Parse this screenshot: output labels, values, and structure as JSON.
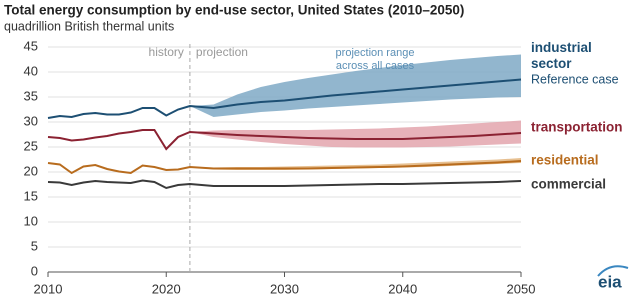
{
  "chart_data": {
    "type": "line",
    "title": "Total energy consumption by end-use sector, United States (2010–2050)",
    "subtitle": "quadrillion British thermal units",
    "x": [
      2010,
      2011,
      2012,
      2013,
      2014,
      2015,
      2016,
      2017,
      2018,
      2019,
      2020,
      2021,
      2022,
      2024,
      2026,
      2028,
      2030,
      2032,
      2034,
      2036,
      2038,
      2040,
      2042,
      2044,
      2046,
      2048,
      2050
    ],
    "xlim": [
      2010,
      2050
    ],
    "xticks": [
      2010,
      2020,
      2030,
      2040,
      2050
    ],
    "ylim": [
      0,
      45
    ],
    "yticks": [
      0,
      5,
      10,
      15,
      20,
      25,
      30,
      35,
      40,
      45
    ],
    "grid": true,
    "projection_start": 2022,
    "annotations": {
      "history": "history",
      "projection": "projection",
      "range": [
        "projection range",
        "across all cases"
      ],
      "reference": "Reference case"
    },
    "source": "eia",
    "series": [
      {
        "name": "industrial sector",
        "color": "#1d4f73",
        "band_color": "#7fa9c6",
        "values": [
          30.8,
          31.2,
          31.0,
          31.6,
          31.8,
          31.5,
          31.5,
          31.9,
          32.8,
          32.8,
          31.3,
          32.5,
          33.2,
          32.8,
          33.5,
          34.0,
          34.3,
          34.8,
          35.3,
          35.7,
          36.1,
          36.5,
          36.9,
          37.3,
          37.7,
          38.1,
          38.5
        ],
        "low": [
          null,
          null,
          null,
          null,
          null,
          null,
          null,
          null,
          null,
          null,
          null,
          null,
          33.2,
          31.0,
          31.5,
          32.0,
          32.3,
          32.7,
          33.0,
          33.3,
          33.6,
          33.9,
          34.2,
          34.5,
          34.7,
          34.9,
          35.0
        ],
        "high": [
          null,
          null,
          null,
          null,
          null,
          null,
          null,
          null,
          null,
          null,
          null,
          null,
          33.2,
          33.5,
          35.5,
          37.0,
          38.0,
          38.8,
          39.5,
          40.2,
          40.8,
          41.4,
          41.9,
          42.4,
          42.8,
          43.2,
          43.5
        ]
      },
      {
        "name": "transportation",
        "color": "#8b2232",
        "band_color": "#e3a5ad",
        "values": [
          27.0,
          26.8,
          26.3,
          26.5,
          26.9,
          27.2,
          27.7,
          28.0,
          28.4,
          28.4,
          24.6,
          27.0,
          28.0,
          27.7,
          27.4,
          27.2,
          27.0,
          26.8,
          26.7,
          26.6,
          26.6,
          26.6,
          26.8,
          27.0,
          27.2,
          27.5,
          27.8
        ],
        "low": [
          null,
          null,
          null,
          null,
          null,
          null,
          null,
          null,
          null,
          null,
          null,
          null,
          28.0,
          27.0,
          26.5,
          26.0,
          25.6,
          25.3,
          25.0,
          24.9,
          24.9,
          24.9,
          25.0,
          25.1,
          25.3,
          25.5,
          25.7
        ],
        "high": [
          null,
          null,
          null,
          null,
          null,
          null,
          null,
          null,
          null,
          null,
          null,
          null,
          28.0,
          28.3,
          28.4,
          28.4,
          28.4,
          28.4,
          28.5,
          28.6,
          28.7,
          28.9,
          29.1,
          29.4,
          29.7,
          30.0,
          30.3
        ]
      },
      {
        "name": "residential",
        "color": "#b86c1e",
        "band_color": "#e3b57e",
        "values": [
          21.8,
          21.5,
          19.8,
          21.1,
          21.4,
          20.6,
          20.1,
          19.8,
          21.3,
          21.0,
          20.4,
          20.5,
          21.0,
          20.7,
          20.7,
          20.7,
          20.7,
          20.7,
          20.8,
          20.9,
          21.0,
          21.1,
          21.3,
          21.5,
          21.7,
          21.9,
          22.2
        ],
        "low": [
          null,
          null,
          null,
          null,
          null,
          null,
          null,
          null,
          null,
          null,
          null,
          null,
          21.0,
          20.5,
          20.4,
          20.4,
          20.4,
          20.5,
          20.6,
          20.7,
          20.8,
          20.9,
          21.0,
          21.2,
          21.4,
          21.6,
          21.8
        ],
        "high": [
          null,
          null,
          null,
          null,
          null,
          null,
          null,
          null,
          null,
          null,
          null,
          null,
          21.0,
          20.9,
          21.0,
          21.0,
          21.1,
          21.2,
          21.3,
          21.4,
          21.5,
          21.7,
          21.9,
          22.1,
          22.3,
          22.5,
          22.8
        ]
      },
      {
        "name": "commercial",
        "color": "#3a3a3a",
        "values": [
          18.0,
          17.9,
          17.4,
          17.9,
          18.2,
          18.0,
          17.9,
          17.8,
          18.3,
          18.0,
          16.8,
          17.4,
          17.6,
          17.2,
          17.2,
          17.2,
          17.2,
          17.3,
          17.4,
          17.5,
          17.6,
          17.6,
          17.7,
          17.8,
          17.9,
          18.0,
          18.2
        ]
      }
    ]
  }
}
